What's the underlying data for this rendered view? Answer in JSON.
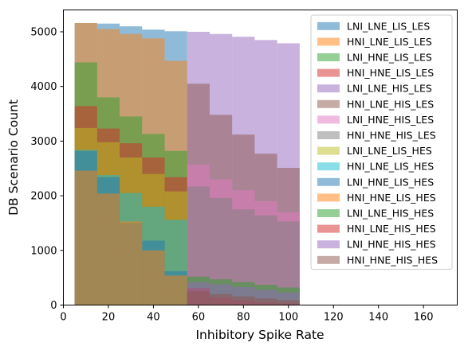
{
  "chart_data": {
    "type": "histogram",
    "xlabel": "Inhibitory Spike Rate",
    "ylabel": "DB Scenario Count",
    "xlim": [
      0,
      175
    ],
    "ylim": [
      0,
      5400
    ],
    "xticks": [
      0,
      20,
      40,
      60,
      80,
      100,
      120,
      140,
      160
    ],
    "yticks": [
      0,
      1000,
      2000,
      3000,
      4000,
      5000
    ],
    "grid": false,
    "legend_position": "upper-right",
    "bin_edges": [
      5,
      15,
      25,
      35,
      45,
      55,
      65,
      75,
      85,
      95,
      105
    ],
    "bar_alpha": 0.5,
    "series": [
      {
        "name": "LNI_LNE_LIS_LES",
        "color": "#1f77b4",
        "values": [
          5160,
          5150,
          5100,
          5040,
          5010,
          0,
          0,
          0,
          0,
          0
        ]
      },
      {
        "name": "HNI_LNE_LIS_LES",
        "color": "#ff7f0e",
        "values": [
          5160,
          5050,
          4960,
          4880,
          4470,
          0,
          0,
          0,
          0,
          0
        ]
      },
      {
        "name": "LNI_HNE_LIS_LES",
        "color": "#2ca02c",
        "values": [
          4440,
          3800,
          3450,
          3130,
          2820,
          0,
          0,
          0,
          0,
          0
        ]
      },
      {
        "name": "HNI_HNE_LIS_LES",
        "color": "#d62728",
        "values": [
          3640,
          3230,
          2960,
          2700,
          2340,
          0,
          0,
          0,
          0,
          0
        ]
      },
      {
        "name": "LNI_LNE_HIS_LES",
        "color": "#9467bd",
        "values": [
          0,
          0,
          0,
          0,
          0,
          5000,
          4960,
          4910,
          4850,
          4790
        ]
      },
      {
        "name": "HNI_LNE_HIS_LES",
        "color": "#8c564b",
        "values": [
          0,
          0,
          0,
          0,
          0,
          4050,
          3480,
          3120,
          2770,
          2510
        ]
      },
      {
        "name": "LNI_HNE_HIS_LES",
        "color": "#e377c2",
        "values": [
          0,
          0,
          0,
          0,
          0,
          2570,
          2300,
          2100,
          1900,
          1700
        ]
      },
      {
        "name": "HNI_HNE_HIS_LES",
        "color": "#7f7f7f",
        "values": [
          0,
          0,
          0,
          0,
          0,
          2170,
          1960,
          1750,
          1640,
          1530
        ]
      },
      {
        "name": "LNI_LNE_LIS_HES",
        "color": "#bcbd22",
        "values": [
          3240,
          2980,
          2700,
          2400,
          2080,
          0,
          0,
          0,
          0,
          0
        ]
      },
      {
        "name": "HNI_LNE_LIS_HES",
        "color": "#17becf",
        "values": [
          2840,
          2380,
          2050,
          1800,
          1560,
          0,
          0,
          0,
          0,
          0
        ]
      },
      {
        "name": "LNI_HNE_LIS_HES",
        "color": "#1f77b4",
        "values": [
          2820,
          2340,
          1500,
          1180,
          620,
          0,
          0,
          0,
          0,
          0
        ]
      },
      {
        "name": "HNI_HNE_LIS_HES",
        "color": "#ff7f0e",
        "values": [
          2460,
          2040,
          1530,
          1000,
          540,
          0,
          0,
          0,
          0,
          0
        ]
      },
      {
        "name": "LNI_LNE_HIS_HES",
        "color": "#2ca02c",
        "values": [
          0,
          0,
          0,
          0,
          0,
          520,
          470,
          420,
          370,
          320
        ]
      },
      {
        "name": "HNI_LNE_HIS_HES",
        "color": "#d62728",
        "values": [
          0,
          0,
          0,
          0,
          0,
          310,
          140,
          90,
          50,
          30
        ]
      },
      {
        "name": "LNI_HNE_HIS_HES",
        "color": "#9467bd",
        "values": [
          0,
          0,
          0,
          0,
          0,
          420,
          380,
          330,
          280,
          230
        ]
      },
      {
        "name": "HNI_HNE_HIS_HES",
        "color": "#8c564b",
        "values": [
          0,
          0,
          0,
          0,
          0,
          250,
          200,
          160,
          120,
          90
        ]
      }
    ]
  }
}
